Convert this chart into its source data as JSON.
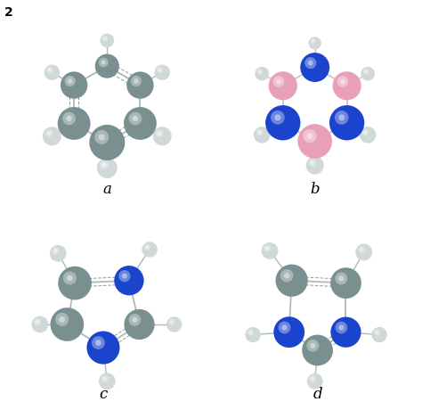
{
  "fig_label": "2",
  "background": "#ffffff",
  "subplots": [
    "a",
    "b",
    "c",
    "d"
  ],
  "colors": {
    "carbon_gray": "#7a9090",
    "hydrogen_white": "#d0d8d8",
    "nitrogen_blue": "#1a44cc",
    "boron_pink": "#e8a0b8",
    "bond": "#b0b8b8"
  },
  "label_fontsize": 12,
  "fig_label_fontsize": 10
}
